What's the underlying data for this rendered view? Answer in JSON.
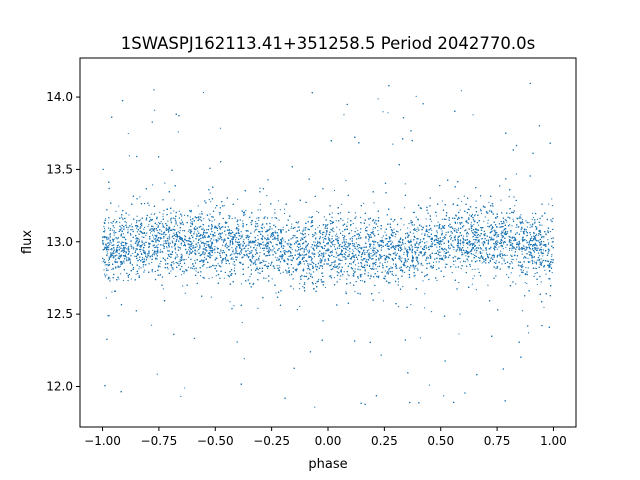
{
  "chart_data": {
    "type": "scatter",
    "title": "1SWASPJ162113.41+351258.5 Period 2042770.0s",
    "xlabel": "phase",
    "ylabel": "flux",
    "xlim": [
      -1.1,
      1.1
    ],
    "ylim": [
      11.72,
      14.27
    ],
    "xticks": [
      -1.0,
      -0.75,
      -0.5,
      -0.25,
      0.0,
      0.25,
      0.5,
      0.75,
      1.0
    ],
    "xtick_labels": [
      "−1.00",
      "−0.75",
      "−0.50",
      "−0.25",
      "0.00",
      "0.25",
      "0.50",
      "0.75",
      "1.00"
    ],
    "yticks": [
      12.0,
      12.5,
      13.0,
      13.5,
      14.0
    ],
    "ytick_labels": [
      "12.0",
      "12.5",
      "13.0",
      "13.5",
      "14.0"
    ],
    "grid": false,
    "marker_color": "#1f77b4",
    "series": [
      {
        "phase_range": [
          -1.0,
          1.0
        ],
        "flux_profile": {
          "phase": [
            -1.0,
            -0.75,
            -0.5,
            -0.25,
            0.0,
            0.25,
            0.5,
            0.75,
            1.0
          ],
          "median": [
            12.93,
            13.01,
            13.0,
            12.96,
            12.92,
            12.95,
            12.99,
            13.02,
            12.93
          ],
          "core_halfwidth": 0.3,
          "outlier_range": [
            11.85,
            14.1
          ]
        }
      }
    ]
  }
}
